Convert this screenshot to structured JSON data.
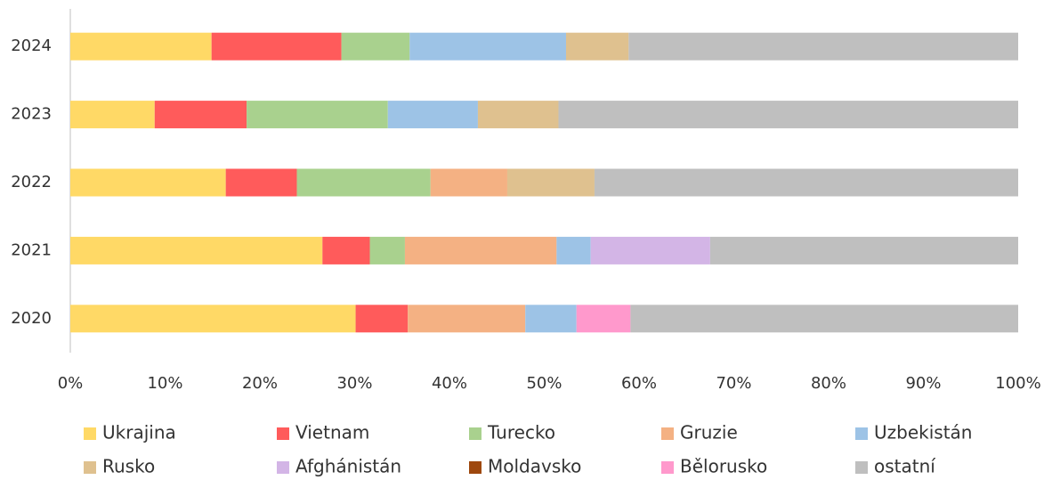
{
  "chart_data": {
    "type": "stacked_barh",
    "categories": [
      "2020",
      "2021",
      "2022",
      "2023",
      "2024"
    ],
    "series": [
      {
        "name": "Ukrajina",
        "color": "#FFD966",
        "values": [
          30.1,
          26.6,
          16.4,
          8.9,
          14.9
        ]
      },
      {
        "name": "Vietnam",
        "color": "#FF5B5B",
        "values": [
          5.5,
          5.0,
          7.5,
          9.7,
          13.7
        ]
      },
      {
        "name": "Turecko",
        "color": "#A9D18E",
        "values": [
          null,
          3.7,
          14.1,
          14.9,
          7.2
        ]
      },
      {
        "name": "Gruzie",
        "color": "#F4B183",
        "values": [
          12.4,
          16.0,
          8.1,
          null,
          null
        ]
      },
      {
        "name": "Uzbekistán",
        "color": "#9DC3E6",
        "values": [
          5.4,
          3.6,
          null,
          9.5,
          16.5
        ]
      },
      {
        "name": "Rusko",
        "color": "#DFC18F",
        "values": [
          null,
          null,
          9.2,
          8.5,
          6.6
        ]
      },
      {
        "name": "Afghánistán",
        "color": "#D3B5E6",
        "values": [
          null,
          12.6,
          null,
          null,
          null
        ]
      },
      {
        "name": "Moldavsko",
        "color": "#9E480E",
        "values": [
          null,
          null,
          null,
          null,
          null
        ]
      },
      {
        "name": "Bělorusko",
        "color": "#FF99CC",
        "values": [
          5.7,
          null,
          null,
          null,
          null
        ]
      },
      {
        "name": "ostatní",
        "color": "#BFBFBF",
        "values": [
          40.9,
          32.5,
          44.7,
          48.5,
          41.1
        ]
      }
    ],
    "xlim": [
      0,
      100
    ],
    "xticks": [
      {
        "value": 0,
        "label": "0%"
      },
      {
        "value": 10,
        "label": "10%"
      },
      {
        "value": 20,
        "label": "20%"
      },
      {
        "value": 30,
        "label": "30%"
      },
      {
        "value": 40,
        "label": "40%"
      },
      {
        "value": 50,
        "label": "50%"
      },
      {
        "value": 60,
        "label": "60%"
      },
      {
        "value": 70,
        "label": "70%"
      },
      {
        "value": 80,
        "label": "80%"
      },
      {
        "value": 90,
        "label": "90%"
      },
      {
        "value": 100,
        "label": "100%"
      }
    ],
    "legend": "bottom"
  }
}
